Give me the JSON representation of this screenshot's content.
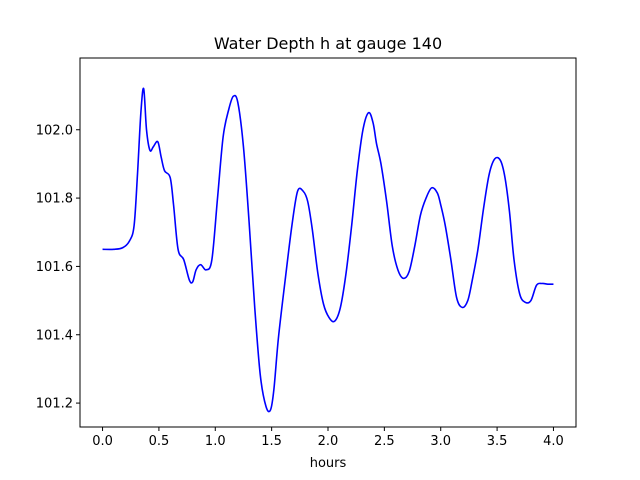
{
  "chart_data": {
    "type": "line",
    "title": "Water Depth h at gauge 140",
    "xlabel": "hours",
    "ylabel": "",
    "xlim": [
      -0.2,
      4.2
    ],
    "ylim": [
      101.13,
      102.21
    ],
    "xticks": [
      0.0,
      0.5,
      1.0,
      1.5,
      2.0,
      2.5,
      3.0,
      3.5,
      4.0
    ],
    "xtick_labels": [
      "0.0",
      "0.5",
      "1.0",
      "1.5",
      "2.0",
      "2.5",
      "3.0",
      "3.5",
      "4.0"
    ],
    "yticks": [
      101.2,
      101.4,
      101.6,
      101.8,
      102.0
    ],
    "ytick_labels": [
      "101.2",
      "101.4",
      "101.6",
      "101.8",
      "102.0"
    ],
    "grid": false,
    "series": [
      {
        "color": "#0000ff",
        "x": [
          0.0,
          0.1,
          0.18,
          0.24,
          0.28,
          0.31,
          0.34,
          0.365,
          0.39,
          0.42,
          0.45,
          0.49,
          0.52,
          0.55,
          0.6,
          0.63,
          0.67,
          0.72,
          0.77,
          0.8,
          0.83,
          0.87,
          0.92,
          0.97,
          1.02,
          1.07,
          1.12,
          1.16,
          1.2,
          1.25,
          1.3,
          1.35,
          1.4,
          1.45,
          1.49,
          1.52,
          1.56,
          1.62,
          1.68,
          1.73,
          1.78,
          1.82,
          1.86,
          1.91,
          1.96,
          2.01,
          2.06,
          2.11,
          2.16,
          2.21,
          2.26,
          2.31,
          2.36,
          2.4,
          2.43,
          2.47,
          2.52,
          2.57,
          2.62,
          2.67,
          2.72,
          2.77,
          2.82,
          2.87,
          2.92,
          2.97,
          3.0,
          3.04,
          3.09,
          3.14,
          3.19,
          3.24,
          3.28,
          3.33,
          3.38,
          3.43,
          3.48,
          3.53,
          3.57,
          3.61,
          3.65,
          3.7,
          3.75,
          3.8,
          3.85,
          3.9,
          3.95,
          4.0
        ],
        "values": [
          101.65,
          101.65,
          101.655,
          101.675,
          101.72,
          101.87,
          102.05,
          102.12,
          102.0,
          101.94,
          101.95,
          101.965,
          101.92,
          101.88,
          101.86,
          101.78,
          101.65,
          101.62,
          101.56,
          101.555,
          101.59,
          101.605,
          101.59,
          101.62,
          101.8,
          101.98,
          102.06,
          102.098,
          102.08,
          101.95,
          101.73,
          101.48,
          101.28,
          101.19,
          101.18,
          101.24,
          101.39,
          101.56,
          101.72,
          101.82,
          101.82,
          101.79,
          101.71,
          101.58,
          101.49,
          101.45,
          101.44,
          101.48,
          101.58,
          101.72,
          101.88,
          102.0,
          102.05,
          102.02,
          101.96,
          101.9,
          101.79,
          101.66,
          101.59,
          101.565,
          101.585,
          101.66,
          101.75,
          101.8,
          101.83,
          101.815,
          101.78,
          101.72,
          101.62,
          101.51,
          101.48,
          101.5,
          101.56,
          101.65,
          101.77,
          101.87,
          101.915,
          101.91,
          101.86,
          101.76,
          101.62,
          101.52,
          101.495,
          101.5,
          101.545,
          101.55,
          101.548,
          101.548
        ]
      }
    ]
  }
}
